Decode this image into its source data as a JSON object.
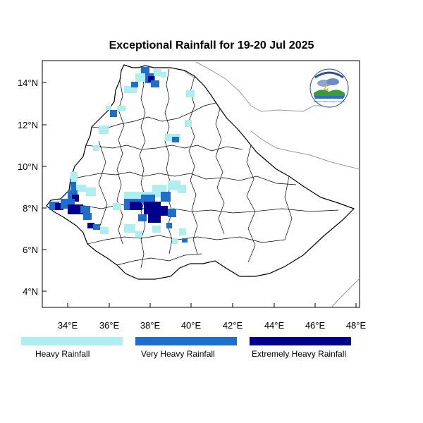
{
  "title": "Exceptional Rainfall for 19-20 Jul 2025",
  "colors": {
    "heavy": "#aeeeee",
    "very_heavy": "#1e6fcc",
    "extreme": "#00008b",
    "boundary": "#000000",
    "neighbor": "#9a9a9a"
  },
  "axes": {
    "x_ticks": [
      "34°E",
      "36°E",
      "38°E",
      "40°E",
      "42°E",
      "44°E",
      "46°E",
      "48°E"
    ],
    "y_ticks": [
      "14°N",
      "12°N",
      "10°N",
      "8°N",
      "6°N",
      "4°N"
    ]
  },
  "legend": [
    {
      "label": "Heavy Rainfall",
      "color": "#aeeeee"
    },
    {
      "label": "Very Heavy Rainfall",
      "color": "#1e6fcc"
    },
    {
      "label": "Extremely Heavy Rainfall",
      "color": "#00008b"
    }
  ],
  "logo": {
    "top_text": "ETHIOPIAN METEOROLOGY INSTITUTE",
    "bottom_text": "Ethiopian Meteorological Institute"
  }
}
